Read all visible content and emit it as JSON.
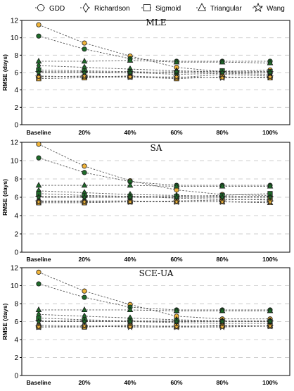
{
  "legend": {
    "entries": [
      {
        "label": "GDD",
        "marker": "circle-icon"
      },
      {
        "label": "Richardson",
        "marker": "diamond-icon"
      },
      {
        "label": "Sigmoid",
        "marker": "square-icon"
      },
      {
        "label": "Triangular",
        "marker": "triangle-icon"
      },
      {
        "label": "Wang",
        "marker": "star-icon"
      }
    ]
  },
  "colors": {
    "green": "#1f6b2a",
    "orange": "#f0b43a",
    "grid": "#cfcfcf",
    "line": "#555555",
    "axis": "#000000"
  },
  "chart_data": [
    {
      "type": "line",
      "title": "MLE",
      "ylabel": "RMSE (days)",
      "ylim": [
        0,
        12
      ],
      "yticks": [
        0,
        2,
        4,
        6,
        8,
        10,
        12
      ],
      "categories": [
        "Baseline",
        "20%",
        "40%",
        "60%",
        "80%",
        "100%"
      ],
      "grid": "horizontal dashed",
      "series": [
        {
          "name": "GDD",
          "marker": "circle",
          "color": "orange",
          "values": [
            11.5,
            9.4,
            7.9,
            6.6,
            6.1,
            6.3
          ]
        },
        {
          "name": "GDD",
          "marker": "circle",
          "color": "green",
          "values": [
            10.2,
            8.7,
            7.6,
            7.3,
            7.3,
            7.3
          ]
        },
        {
          "name": "Richardson",
          "marker": "diamond",
          "color": "orange",
          "values": [
            6.1,
            6.1,
            6.0,
            5.8,
            5.9,
            5.8
          ]
        },
        {
          "name": "Richardson",
          "marker": "diamond",
          "color": "green",
          "values": [
            6.8,
            6.6,
            6.4,
            6.2,
            6.1,
            6.0
          ]
        },
        {
          "name": "Sigmoid",
          "marker": "square",
          "color": "orange",
          "values": [
            5.3,
            5.4,
            5.5,
            5.3,
            5.5,
            5.4
          ]
        },
        {
          "name": "Sigmoid",
          "marker": "square",
          "color": "green",
          "values": [
            6.3,
            6.2,
            6.1,
            6.0,
            6.2,
            6.1
          ]
        },
        {
          "name": "Triangular",
          "marker": "triangle",
          "color": "green",
          "values": [
            7.3,
            7.3,
            7.4,
            7.2,
            7.2,
            7.1
          ]
        },
        {
          "name": "Triangular",
          "marker": "triangle",
          "color": "orange",
          "values": [
            5.6,
            5.5,
            5.6,
            5.4,
            5.8,
            5.6
          ]
        },
        {
          "name": "Wang",
          "marker": "star",
          "color": "orange",
          "values": [
            5.5,
            5.6,
            5.5,
            5.5,
            5.4,
            5.5
          ]
        },
        {
          "name": "Wang",
          "marker": "star",
          "color": "green",
          "values": [
            6.0,
            6.0,
            6.0,
            6.1,
            6.0,
            6.0
          ]
        }
      ]
    },
    {
      "type": "line",
      "title": "SA",
      "ylabel": "RMSE (days)",
      "ylim": [
        0,
        12
      ],
      "yticks": [
        0,
        2,
        4,
        6,
        8,
        10,
        12
      ],
      "categories": [
        "Baseline",
        "20%",
        "40%",
        "60%",
        "80%",
        "100%"
      ],
      "grid": "horizontal dashed",
      "series": [
        {
          "name": "GDD",
          "marker": "circle",
          "color": "orange",
          "values": [
            11.8,
            9.4,
            7.8,
            6.8,
            6.3,
            6.2
          ]
        },
        {
          "name": "GDD",
          "marker": "circle",
          "color": "green",
          "values": [
            10.3,
            8.7,
            7.7,
            7.3,
            7.3,
            7.3
          ]
        },
        {
          "name": "Richardson",
          "marker": "diamond",
          "color": "orange",
          "values": [
            6.1,
            6.1,
            6.1,
            5.9,
            5.8,
            5.7
          ]
        },
        {
          "name": "Richardson",
          "marker": "diamond",
          "color": "green",
          "values": [
            6.7,
            6.5,
            6.3,
            6.2,
            6.1,
            6.1
          ]
        },
        {
          "name": "Sigmoid",
          "marker": "square",
          "color": "orange",
          "values": [
            5.4,
            5.4,
            5.5,
            5.6,
            5.7,
            5.8
          ]
        },
        {
          "name": "Sigmoid",
          "marker": "square",
          "color": "green",
          "values": [
            6.4,
            6.2,
            6.1,
            6.1,
            6.2,
            6.4
          ]
        },
        {
          "name": "Triangular",
          "marker": "triangle",
          "color": "green",
          "values": [
            7.3,
            7.3,
            7.3,
            7.2,
            7.2,
            7.2
          ]
        },
        {
          "name": "Triangular",
          "marker": "triangle",
          "color": "orange",
          "values": [
            5.6,
            5.6,
            5.6,
            5.5,
            5.5,
            5.4
          ]
        },
        {
          "name": "Wang",
          "marker": "star",
          "color": "orange",
          "values": [
            5.5,
            5.5,
            5.5,
            5.5,
            5.5,
            5.5
          ]
        },
        {
          "name": "Wang",
          "marker": "star",
          "color": "green",
          "values": [
            6.0,
            6.0,
            6.0,
            6.0,
            6.0,
            6.0
          ]
        }
      ]
    },
    {
      "type": "line",
      "title": "SCE-UA",
      "ylabel": "RMSE (days)",
      "ylim": [
        0,
        12
      ],
      "yticks": [
        0,
        2,
        4,
        6,
        8,
        10,
        12
      ],
      "categories": [
        "Baseline",
        "20%",
        "40%",
        "60%",
        "80%",
        "100%"
      ],
      "grid": "horizontal dashed",
      "series": [
        {
          "name": "GDD",
          "marker": "circle",
          "color": "orange",
          "values": [
            11.5,
            9.4,
            7.9,
            6.6,
            6.3,
            6.3
          ]
        },
        {
          "name": "GDD",
          "marker": "circle",
          "color": "green",
          "values": [
            10.2,
            8.7,
            7.6,
            7.3,
            7.3,
            7.3
          ]
        },
        {
          "name": "Richardson",
          "marker": "diamond",
          "color": "orange",
          "values": [
            6.1,
            6.1,
            6.0,
            5.9,
            5.8,
            5.8
          ]
        },
        {
          "name": "Richardson",
          "marker": "diamond",
          "color": "green",
          "values": [
            6.8,
            6.6,
            6.4,
            6.2,
            6.1,
            6.1
          ]
        },
        {
          "name": "Sigmoid",
          "marker": "square",
          "color": "orange",
          "values": [
            5.4,
            5.4,
            5.5,
            5.5,
            5.5,
            5.5
          ]
        },
        {
          "name": "Sigmoid",
          "marker": "square",
          "color": "green",
          "values": [
            6.4,
            6.2,
            6.1,
            6.1,
            6.0,
            6.0
          ]
        },
        {
          "name": "Triangular",
          "marker": "triangle",
          "color": "green",
          "values": [
            7.3,
            7.3,
            7.3,
            7.2,
            7.2,
            7.2
          ]
        },
        {
          "name": "Triangular",
          "marker": "triangle",
          "color": "orange",
          "values": [
            5.6,
            5.5,
            5.6,
            5.4,
            5.6,
            5.5
          ]
        },
        {
          "name": "Wang",
          "marker": "star",
          "color": "orange",
          "values": [
            5.4,
            5.5,
            5.4,
            5.4,
            5.4,
            5.5
          ]
        },
        {
          "name": "Wang",
          "marker": "star",
          "color": "green",
          "values": [
            6.0,
            6.0,
            6.0,
            6.0,
            6.0,
            6.0
          ]
        }
      ]
    }
  ]
}
